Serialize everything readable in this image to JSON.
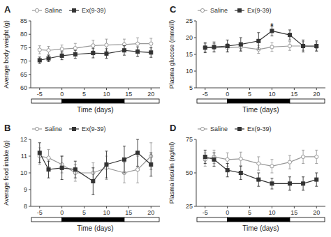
{
  "chart_data": [
    {
      "type": "line",
      "title": "A",
      "xlabel": "Time (days)",
      "ylabel": "Average body weight (g)",
      "xlim": [
        -7,
        22
      ],
      "ylim": [
        60,
        85
      ],
      "xticks": [
        -5,
        0,
        5,
        10,
        15,
        20
      ],
      "yticks": [
        60,
        65,
        70,
        75,
        80,
        85
      ],
      "grid": false,
      "legend": "upper left",
      "x": [
        -5,
        -3,
        0,
        3,
        7,
        10,
        14,
        17,
        20
      ],
      "series": [
        {
          "name": "Saline",
          "color": "#999999",
          "marker": "circle-open",
          "line_style": "solid",
          "values": [
            74.2,
            74.0,
            74.5,
            74.8,
            75.8,
            76.0,
            76.2,
            76.5,
            76.5
          ],
          "errors": [
            1.5,
            1.5,
            1.5,
            1.8,
            2.0,
            2.2,
            2.0,
            2.2,
            2.0
          ]
        },
        {
          "name": "Ex(9-39)",
          "color": "#333333",
          "marker": "square",
          "line_style": "solid",
          "values": [
            70.3,
            71.0,
            72.0,
            72.5,
            73.0,
            72.8,
            74.0,
            73.5,
            73.2
          ],
          "errors": [
            1.2,
            1.2,
            1.5,
            1.5,
            1.8,
            1.8,
            1.8,
            1.8,
            1.8
          ]
        }
      ],
      "treatment_bar": {
        "start": 0,
        "end": 14
      }
    },
    {
      "type": "line",
      "title": "B",
      "xlabel": "Time (days)",
      "ylabel": "Average food intake (g)",
      "xlim": [
        -7,
        22
      ],
      "ylim": [
        8,
        12
      ],
      "xticks": [
        -5,
        0,
        5,
        10,
        15,
        20
      ],
      "yticks": [
        8,
        9,
        10,
        11,
        12
      ],
      "grid": false,
      "legend": "upper left",
      "x": [
        -5,
        -3,
        0,
        3,
        7,
        10,
        14,
        17,
        20
      ],
      "series": [
        {
          "name": "Saline",
          "color": "#999999",
          "marker": "circle-open",
          "line_style": "solid",
          "values": [
            11.0,
            10.9,
            10.5,
            10.0,
            10.0,
            10.3,
            10.0,
            10.2,
            11.0
          ],
          "errors": [
            0.5,
            0.5,
            0.5,
            0.5,
            0.6,
            0.7,
            0.6,
            0.8,
            0.8
          ]
        },
        {
          "name": "Ex(9-39)",
          "color": "#333333",
          "marker": "square",
          "line_style": "solid",
          "values": [
            11.2,
            10.2,
            10.3,
            10.2,
            9.5,
            10.5,
            10.8,
            11.2,
            10.5
          ],
          "errors": [
            0.6,
            0.5,
            0.7,
            0.5,
            0.8,
            0.8,
            0.8,
            0.8,
            0.7
          ]
        }
      ],
      "treatment_bar": {
        "start": 0,
        "end": 14
      }
    },
    {
      "type": "line",
      "title": "C",
      "xlabel": "Time (days)",
      "ylabel": "Plasma glucose (mmol/l)",
      "xlim": [
        -7,
        22
      ],
      "ylim": [
        5,
        25
      ],
      "xticks": [
        -5,
        0,
        5,
        10,
        15,
        20
      ],
      "yticks": [
        5,
        10,
        15,
        20,
        25
      ],
      "grid": false,
      "legend": "upper left",
      "x": [
        -5,
        -3,
        0,
        3,
        7,
        10,
        14,
        17,
        20
      ],
      "series": [
        {
          "name": "Saline",
          "color": "#999999",
          "marker": "circle-open",
          "line_style": "solid",
          "values": [
            17.0,
            17.0,
            17.0,
            17.2,
            16.5,
            17.2,
            17.5,
            17.5,
            17.2
          ],
          "errors": [
            1.2,
            1.2,
            1.2,
            1.2,
            1.2,
            1.3,
            1.3,
            1.3,
            1.2
          ]
        },
        {
          "name": "Ex(9-39)",
          "color": "#333333",
          "marker": "square",
          "line_style": "solid",
          "values": [
            17.0,
            17.2,
            17.5,
            18.0,
            19.0,
            22.0,
            20.8,
            17.5,
            17.5
          ],
          "errors": [
            1.5,
            1.5,
            1.8,
            2.0,
            2.5,
            1.5,
            1.5,
            1.8,
            1.5
          ]
        }
      ],
      "annotations": [
        {
          "text": "*",
          "x": 10,
          "y": 23.8
        }
      ],
      "treatment_bar": {
        "start": 0,
        "end": 14
      }
    },
    {
      "type": "line",
      "title": "D",
      "xlabel": "Time (days)",
      "ylabel": "Plasma insulin (ng/ml)",
      "xlim": [
        -7,
        22
      ],
      "ylim": [
        25,
        75
      ],
      "xticks": [
        -5,
        0,
        5,
        10,
        15,
        20
      ],
      "yticks": [
        25,
        50,
        75
      ],
      "grid": false,
      "legend": "upper left",
      "x": [
        -5,
        -3,
        0,
        3,
        7,
        10,
        14,
        17,
        20
      ],
      "series": [
        {
          "name": "Saline",
          "color": "#999999",
          "marker": "circle-open",
          "line_style": "solid",
          "values": [
            60.0,
            62.0,
            60.0,
            60.5,
            57.0,
            55.0,
            58.0,
            62.0,
            62.0
          ],
          "errors": [
            5.0,
            5.0,
            5.0,
            5.0,
            5.0,
            5.0,
            5.0,
            5.0,
            5.0
          ]
        },
        {
          "name": "Ex(9-39)",
          "color": "#333333",
          "marker": "square",
          "line_style": "solid",
          "values": [
            62.0,
            60.0,
            52.0,
            50.0,
            45.0,
            42.0,
            42.0,
            42.0,
            45.0
          ],
          "errors": [
            5.0,
            5.0,
            5.0,
            5.0,
            5.0,
            4.0,
            5.0,
            5.0,
            5.0
          ]
        }
      ],
      "treatment_bar": {
        "start": 0,
        "end": 14
      }
    }
  ]
}
